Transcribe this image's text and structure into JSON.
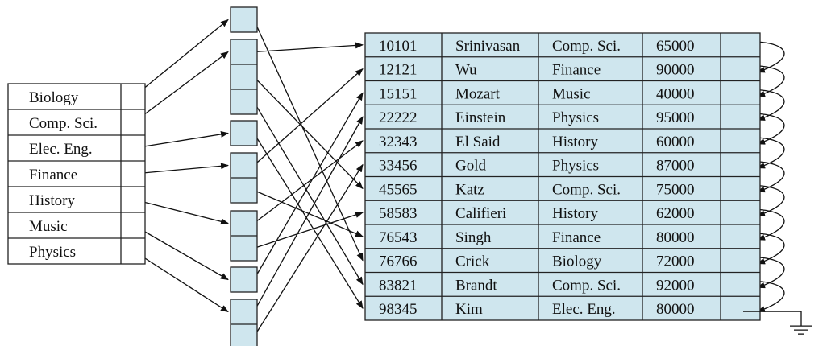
{
  "index": {
    "keys": [
      "Biology",
      "Comp. Sci.",
      "Elec. Eng.",
      "Finance",
      "History",
      "Music",
      "Physics"
    ]
  },
  "records": [
    {
      "id": "10101",
      "name": "Srinivasan",
      "dept": "Comp. Sci.",
      "salary": "65000"
    },
    {
      "id": "12121",
      "name": "Wu",
      "dept": "Finance",
      "salary": "90000"
    },
    {
      "id": "15151",
      "name": "Mozart",
      "dept": "Music",
      "salary": "40000"
    },
    {
      "id": "22222",
      "name": "Einstein",
      "dept": "Physics",
      "salary": "95000"
    },
    {
      "id": "32343",
      "name": "El Said",
      "dept": "History",
      "salary": "60000"
    },
    {
      "id": "33456",
      "name": "Gold",
      "dept": "Physics",
      "salary": "87000"
    },
    {
      "id": "45565",
      "name": "Katz",
      "dept": "Comp. Sci.",
      "salary": "75000"
    },
    {
      "id": "58583",
      "name": "Califieri",
      "dept": "History",
      "salary": "62000"
    },
    {
      "id": "76543",
      "name": "Singh",
      "dept": "Finance",
      "salary": "80000"
    },
    {
      "id": "76766",
      "name": "Crick",
      "dept": "Biology",
      "salary": "72000"
    },
    {
      "id": "83821",
      "name": "Brandt",
      "dept": "Comp. Sci.",
      "salary": "92000"
    },
    {
      "id": "98345",
      "name": "Kim",
      "dept": "Elec. Eng.",
      "salary": "80000"
    }
  ],
  "colors": {
    "cell_fill": "#cfe6ee",
    "line": "#111111",
    "background": "#ffffff"
  }
}
